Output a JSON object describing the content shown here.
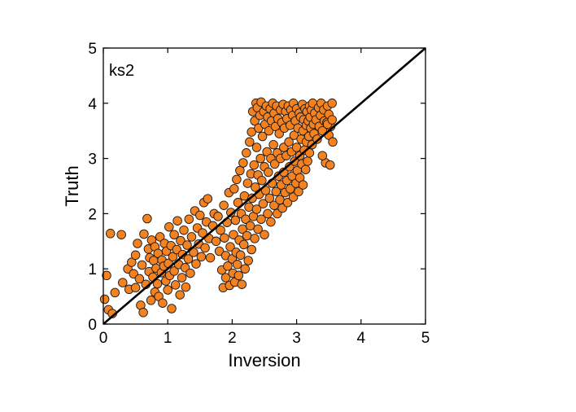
{
  "chart_data": {
    "type": "scatter",
    "panel_label": "ks2",
    "xlabel": "Inversion",
    "ylabel": "Truth",
    "xlim": [
      0,
      5
    ],
    "ylim": [
      0,
      5
    ],
    "xticks": [
      0,
      1,
      2,
      3,
      4,
      5
    ],
    "yticks": [
      0,
      1,
      2,
      3,
      4,
      5
    ],
    "xtick_labels": [
      "0",
      "1",
      "2",
      "3",
      "4",
      "5"
    ],
    "ytick_labels": [
      "0",
      "1",
      "2",
      "3",
      "4",
      "5"
    ],
    "grid": false,
    "reference_line": {
      "from": [
        0,
        0
      ],
      "to": [
        5,
        5
      ],
      "color": "#000000"
    },
    "marker_color": "#f58220",
    "marker_edge_color": "#1a1a1a",
    "series": [
      {
        "name": "ks2",
        "points": [
          [
            0.02,
            0.45
          ],
          [
            0.05,
            0.88
          ],
          [
            0.08,
            0.26
          ],
          [
            0.11,
            1.64
          ],
          [
            0.14,
            0.19
          ],
          [
            0.18,
            0.57
          ],
          [
            0.28,
            1.62
          ],
          [
            0.3,
            0.75
          ],
          [
            0.38,
            1.0
          ],
          [
            0.4,
            0.63
          ],
          [
            0.44,
            1.12
          ],
          [
            0.47,
            0.91
          ],
          [
            0.5,
            0.66
          ],
          [
            0.5,
            1.25
          ],
          [
            0.53,
            1.46
          ],
          [
            0.56,
            0.82
          ],
          [
            0.58,
            0.34
          ],
          [
            0.6,
            1.07
          ],
          [
            0.62,
            0.21
          ],
          [
            0.63,
            1.63
          ],
          [
            0.66,
            0.72
          ],
          [
            0.68,
            1.91
          ],
          [
            0.7,
            1.36
          ],
          [
            0.71,
            0.95
          ],
          [
            0.72,
            1.2
          ],
          [
            0.74,
            0.43
          ],
          [
            0.75,
            1.52
          ],
          [
            0.77,
            0.85
          ],
          [
            0.78,
            1.15
          ],
          [
            0.8,
            0.58
          ],
          [
            0.8,
            1.4
          ],
          [
            0.82,
            1.01
          ],
          [
            0.84,
            0.73
          ],
          [
            0.85,
            1.28
          ],
          [
            0.86,
            0.5
          ],
          [
            0.88,
            1.58
          ],
          [
            0.9,
            0.93
          ],
          [
            0.91,
            1.16
          ],
          [
            0.92,
            0.38
          ],
          [
            0.94,
            1.05
          ],
          [
            0.95,
            1.46
          ],
          [
            0.97,
            0.78
          ],
          [
            0.98,
            1.32
          ],
          [
            1.0,
            0.62
          ],
          [
            1.01,
            1.1
          ],
          [
            1.02,
            1.76
          ],
          [
            1.03,
            0.88
          ],
          [
            1.05,
            1.42
          ],
          [
            1.06,
            0.28
          ],
          [
            1.08,
            1.22
          ],
          [
            1.1,
            0.96
          ],
          [
            1.1,
            1.62
          ],
          [
            1.12,
            0.71
          ],
          [
            1.14,
            1.35
          ],
          [
            1.15,
            1.87
          ],
          [
            1.17,
            1.08
          ],
          [
            1.19,
            0.53
          ],
          [
            1.2,
            1.51
          ],
          [
            1.22,
            0.84
          ],
          [
            1.23,
            1.26
          ],
          [
            1.25,
            1.7
          ],
          [
            1.27,
            1.02
          ],
          [
            1.28,
            0.67
          ],
          [
            1.3,
            1.43
          ],
          [
            1.32,
            1.18
          ],
          [
            1.33,
            1.9
          ],
          [
            1.35,
            0.92
          ],
          [
            1.37,
            1.58
          ],
          [
            1.4,
            1.3
          ],
          [
            1.42,
            2.05
          ],
          [
            1.44,
            1.09
          ],
          [
            1.46,
            1.74
          ],
          [
            1.48,
            1.45
          ],
          [
            1.5,
            1.97
          ],
          [
            1.52,
            1.22
          ],
          [
            1.54,
            1.65
          ],
          [
            1.56,
            2.2
          ],
          [
            1.58,
            1.38
          ],
          [
            1.6,
            1.85
          ],
          [
            1.62,
            2.27
          ],
          [
            1.64,
            1.55
          ],
          [
            1.66,
            1.2
          ],
          [
            1.7,
            1.78
          ],
          [
            1.72,
            2.0
          ],
          [
            1.75,
            1.5
          ],
          [
            1.78,
            1.95
          ],
          [
            1.8,
            1.32
          ],
          [
            1.82,
            1.7
          ],
          [
            1.84,
            0.98
          ],
          [
            1.86,
            0.66
          ],
          [
            1.87,
            2.15
          ],
          [
            1.88,
            1.56
          ],
          [
            1.9,
            1.24
          ],
          [
            1.9,
            0.84
          ],
          [
            1.92,
            1.84
          ],
          [
            1.93,
            1.05
          ],
          [
            1.95,
            2.38
          ],
          [
            1.96,
            0.7
          ],
          [
            1.97,
            1.4
          ],
          [
            1.98,
            2.02
          ],
          [
            2.0,
            1.18
          ],
          [
            2.01,
            0.92
          ],
          [
            2.02,
            1.62
          ],
          [
            2.03,
            2.45
          ],
          [
            2.04,
            0.76
          ],
          [
            2.05,
            1.88
          ],
          [
            2.06,
            1.3
          ],
          [
            2.07,
            2.62
          ],
          [
            2.08,
            1.08
          ],
          [
            2.09,
            2.2
          ],
          [
            2.1,
            0.88
          ],
          [
            2.11,
            1.52
          ],
          [
            2.12,
            2.78
          ],
          [
            2.13,
            1.25
          ],
          [
            2.14,
            2.0
          ],
          [
            2.15,
            0.72
          ],
          [
            2.16,
            1.72
          ],
          [
            2.17,
            2.92
          ],
          [
            2.18,
            1.44
          ],
          [
            2.19,
            2.32
          ],
          [
            2.2,
            1.0
          ],
          [
            2.21,
            1.9
          ],
          [
            2.22,
            3.1
          ],
          [
            2.23,
            1.6
          ],
          [
            2.24,
            2.55
          ],
          [
            2.25,
            1.15
          ],
          [
            2.26,
            2.12
          ],
          [
            2.27,
            3.3
          ],
          [
            2.28,
            1.78
          ],
          [
            2.29,
            2.72
          ],
          [
            2.3,
            1.35
          ],
          [
            2.3,
            3.48
          ],
          [
            2.31,
            2.28
          ],
          [
            2.32,
            3.85
          ],
          [
            2.33,
            1.95
          ],
          [
            2.34,
            2.88
          ],
          [
            2.35,
            3.68
          ],
          [
            2.35,
            1.55
          ],
          [
            2.36,
            2.48
          ],
          [
            2.37,
            4.0
          ],
          [
            2.38,
            3.2
          ],
          [
            2.38,
            2.08
          ],
          [
            2.39,
            3.92
          ],
          [
            2.4,
            2.7
          ],
          [
            2.4,
            1.72
          ],
          [
            2.41,
            3.55
          ],
          [
            2.42,
            2.35
          ],
          [
            2.43,
            3.78
          ],
          [
            2.44,
            3.0
          ],
          [
            2.45,
            1.9
          ],
          [
            2.45,
            4.02
          ],
          [
            2.46,
            2.6
          ],
          [
            2.47,
            3.4
          ],
          [
            2.48,
            2.18
          ],
          [
            2.49,
            3.85
          ],
          [
            2.5,
            2.85
          ],
          [
            2.5,
            1.62
          ],
          [
            2.51,
            3.62
          ],
          [
            2.52,
            2.42
          ],
          [
            2.53,
            3.95
          ],
          [
            2.54,
            3.12
          ],
          [
            2.55,
            2.0
          ],
          [
            2.55,
            3.75
          ],
          [
            2.56,
            2.75
          ],
          [
            2.57,
            3.5
          ],
          [
            2.58,
            2.28
          ],
          [
            2.59,
            3.9
          ],
          [
            2.6,
            3.0
          ],
          [
            2.6,
            1.85
          ],
          [
            2.61,
            3.68
          ],
          [
            2.62,
            2.55
          ],
          [
            2.63,
            4.0
          ],
          [
            2.64,
            3.25
          ],
          [
            2.65,
            2.15
          ],
          [
            2.65,
            3.82
          ],
          [
            2.66,
            2.9
          ],
          [
            2.67,
            3.58
          ],
          [
            2.68,
            2.4
          ],
          [
            2.69,
            3.95
          ],
          [
            2.7,
            3.1
          ],
          [
            2.7,
            2.0
          ],
          [
            2.71,
            3.72
          ],
          [
            2.72,
            2.68
          ],
          [
            2.73,
            3.45
          ],
          [
            2.74,
            2.25
          ],
          [
            2.75,
            3.88
          ],
          [
            2.75,
            3.0
          ],
          [
            2.76,
            2.52
          ],
          [
            2.77,
            3.65
          ],
          [
            2.78,
            2.1
          ],
          [
            2.79,
            3.98
          ],
          [
            2.8,
            3.2
          ],
          [
            2.8,
            2.75
          ],
          [
            2.81,
            3.55
          ],
          [
            2.82,
            2.38
          ],
          [
            2.83,
            3.85
          ],
          [
            2.84,
            3.05
          ],
          [
            2.85,
            2.6
          ],
          [
            2.85,
            3.72
          ],
          [
            2.86,
            2.2
          ],
          [
            2.87,
            3.95
          ],
          [
            2.88,
            3.3
          ],
          [
            2.89,
            2.85
          ],
          [
            2.9,
            3.6
          ],
          [
            2.9,
            2.45
          ],
          [
            2.91,
            3.88
          ],
          [
            2.92,
            3.12
          ],
          [
            2.93,
            2.68
          ],
          [
            2.94,
            3.78
          ],
          [
            2.95,
            2.3
          ],
          [
            2.95,
            4.0
          ],
          [
            2.96,
            3.42
          ],
          [
            2.97,
            2.95
          ],
          [
            2.98,
            3.68
          ],
          [
            2.99,
            2.55
          ],
          [
            3.0,
            3.9
          ],
          [
            3.0,
            3.2
          ],
          [
            3.01,
            2.78
          ],
          [
            3.02,
            3.55
          ],
          [
            3.03,
            2.4
          ],
          [
            3.04,
            3.82
          ],
          [
            3.05,
            3.05
          ],
          [
            3.05,
            2.65
          ],
          [
            3.06,
            3.75
          ],
          [
            3.07,
            3.35
          ],
          [
            3.08,
            2.9
          ],
          [
            3.09,
            3.98
          ],
          [
            3.1,
            3.5
          ],
          [
            3.1,
            2.52
          ],
          [
            3.11,
            3.7
          ],
          [
            3.12,
            3.15
          ],
          [
            3.13,
            3.9
          ],
          [
            3.14,
            2.8
          ],
          [
            3.15,
            3.6
          ],
          [
            3.15,
            3.3
          ],
          [
            3.16,
            3.85
          ],
          [
            3.17,
            2.95
          ],
          [
            3.18,
            3.68
          ],
          [
            3.19,
            3.4
          ],
          [
            3.2,
            3.95
          ],
          [
            3.2,
            3.1
          ],
          [
            3.21,
            3.75
          ],
          [
            3.22,
            3.55
          ],
          [
            3.23,
            3.88
          ],
          [
            3.24,
            3.25
          ],
          [
            3.25,
            4.0
          ],
          [
            3.26,
            3.62
          ],
          [
            3.27,
            3.45
          ],
          [
            3.28,
            3.82
          ],
          [
            3.3,
            3.7
          ],
          [
            3.32,
            3.35
          ],
          [
            3.34,
            3.92
          ],
          [
            3.35,
            3.58
          ],
          [
            3.37,
            3.78
          ],
          [
            3.38,
            4.0
          ],
          [
            3.4,
            3.5
          ],
          [
            3.42,
            3.88
          ],
          [
            3.43,
            3.68
          ],
          [
            3.45,
            2.92
          ],
          [
            3.47,
            3.65
          ],
          [
            3.48,
            3.95
          ],
          [
            3.5,
            3.42
          ],
          [
            3.5,
            3.8
          ],
          [
            3.52,
            2.88
          ],
          [
            3.53,
            3.58
          ],
          [
            3.55,
            4.0
          ],
          [
            3.56,
            3.3
          ],
          [
            3.48,
            3.62
          ],
          [
            3.4,
            3.05
          ],
          [
            3.55,
            3.7
          ]
        ]
      }
    ]
  }
}
